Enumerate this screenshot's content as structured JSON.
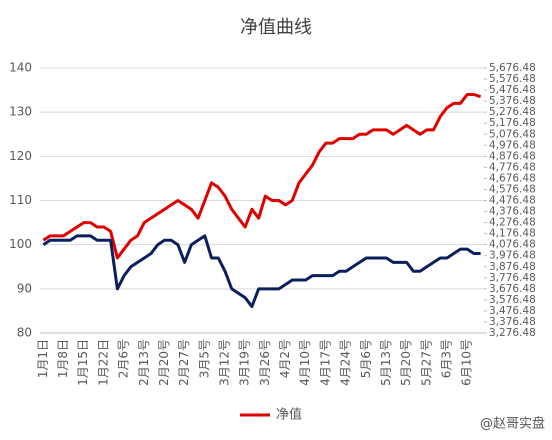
{
  "chart_data": {
    "type": "line",
    "title": "净值曲线",
    "categories": [
      "1月1日",
      null,
      null,
      "1月8日",
      null,
      null,
      "1月15日",
      null,
      null,
      "1月22日",
      null,
      null,
      "2月6号",
      null,
      null,
      "2月13号",
      null,
      null,
      "2月20号",
      null,
      null,
      "2月27号",
      null,
      null,
      "3月5号",
      null,
      null,
      "3月12号",
      null,
      null,
      "3月19号",
      null,
      null,
      "3月26号",
      null,
      null,
      "4月2号",
      null,
      null,
      "4月10号",
      null,
      null,
      "4月17号",
      null,
      null,
      "4月24号",
      null,
      null,
      "5月6号",
      null,
      null,
      "5月13号",
      null,
      null,
      "5月20号",
      null,
      null,
      "5月27号",
      null,
      null,
      "6月3号",
      null,
      null,
      "6月10号",
      null,
      null
    ],
    "series": [
      {
        "name": "净值",
        "color": "#e00000",
        "values": [
          101,
          102,
          102,
          102,
          103,
          104,
          105,
          105,
          104,
          104,
          103,
          97,
          99,
          101,
          102,
          105,
          106,
          107,
          108,
          109,
          110,
          109,
          108,
          106,
          110,
          114,
          113,
          111,
          108,
          106,
          104,
          108,
          106,
          111,
          110,
          110,
          109,
          110,
          114,
          116,
          118,
          121,
          123,
          123,
          124,
          124,
          124,
          125,
          125,
          126,
          126,
          126,
          125,
          126,
          127,
          126,
          125,
          126,
          126,
          129,
          131,
          132,
          132,
          134,
          134,
          133.5
        ]
      },
      {
        "color": "#0b1f5c",
        "axis": "y2",
        "values": [
          4076,
          4116,
          4116,
          4116,
          4116,
          4156,
          4156,
          4156,
          4116,
          4116,
          4116,
          3676,
          3796,
          3876,
          3916,
          3956,
          3996,
          4076,
          4116,
          4116,
          4076,
          3916,
          4076,
          4116,
          4156,
          3956,
          3956,
          3836,
          3676,
          3636,
          3596,
          3516,
          3676,
          3676,
          3676,
          3676,
          3716,
          3756,
          3756,
          3756,
          3796,
          3796,
          3796,
          3796,
          3836,
          3836,
          3876,
          3916,
          3956,
          3956,
          3956,
          3956,
          3916,
          3916,
          3916,
          3836,
          3836,
          3876,
          3916,
          3956,
          3956,
          3996,
          4036,
          4036,
          3996,
          3996
        ]
      }
    ],
    "ylim": [
      80,
      140
    ],
    "yticks": [
      80,
      90,
      100,
      110,
      120,
      130,
      140
    ],
    "y2lim": [
      3276.48,
      5676.48
    ],
    "y2ticks": [
      {
        "value": 3276.48,
        "label": "3,276.48"
      },
      {
        "value": 3376.48,
        "label": "3,376.48"
      },
      {
        "value": 3476.48,
        "label": "3,476.48"
      },
      {
        "value": 3576.48,
        "label": "3,576.48"
      },
      {
        "value": 3676.48,
        "label": "3,676.48"
      },
      {
        "value": 3776.48,
        "label": "3,776.48"
      },
      {
        "value": 3876.48,
        "label": "3,876.48"
      },
      {
        "value": 3976.48,
        "label": "3,976.48"
      },
      {
        "value": 4076.48,
        "label": "4,076.48"
      },
      {
        "value": 4176.48,
        "label": "4,176.48"
      },
      {
        "value": 4276.48,
        "label": "4,276.48"
      },
      {
        "value": 4376.48,
        "label": "4,376.48"
      },
      {
        "value": 4476.48,
        "label": "4,476.48"
      },
      {
        "value": 4576.48,
        "label": "4,576.48"
      },
      {
        "value": 4676.48,
        "label": "4,676.48"
      },
      {
        "value": 4776.48,
        "label": "4,776.48"
      },
      {
        "value": 4876.48,
        "label": "4,876.48"
      },
      {
        "value": 4976.48,
        "label": "4,976.48"
      },
      {
        "value": 5076.48,
        "label": "5,076.48"
      },
      {
        "value": 5176.48,
        "label": "5,176.48"
      },
      {
        "value": 5276.48,
        "label": "5,276.48"
      },
      {
        "value": 5376.48,
        "label": "5,376.48"
      },
      {
        "value": 5476.48,
        "label": "5,476.48"
      },
      {
        "value": 5576.48,
        "label": "5,576.48"
      },
      {
        "value": 5676.48,
        "label": "5,676.48"
      }
    ],
    "grid": true,
    "legend": "bottom",
    "annotation": "@赵哥实盘"
  }
}
